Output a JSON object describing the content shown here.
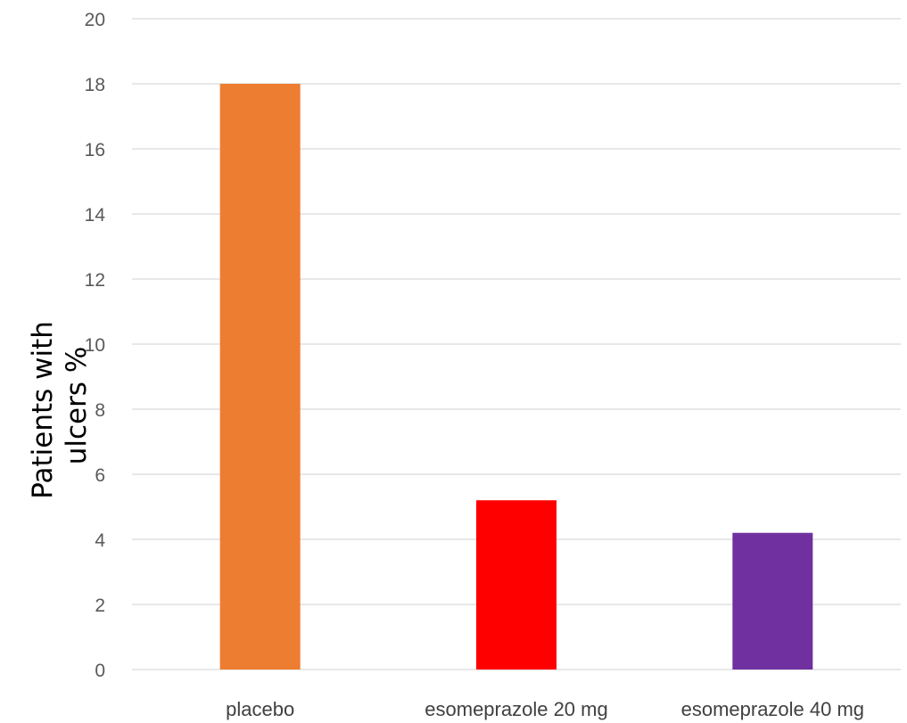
{
  "chart_data": {
    "type": "bar",
    "categories": [
      "placebo",
      "esomeprazole 20 mg",
      "esomeprazole 40 mg"
    ],
    "values": [
      18,
      5.2,
      4.2
    ],
    "colors": [
      "#ed7d31",
      "#ff0000",
      "#7030a0"
    ],
    "title": "",
    "xlabel": "",
    "ylabel_lines": [
      "Patients with",
      "ulcers %"
    ],
    "ylim": [
      0,
      20
    ],
    "yticks": [
      "0",
      "2",
      "4",
      "6",
      "8",
      "10",
      "12",
      "14",
      "16",
      "18",
      "20"
    ],
    "grid": true,
    "legend": "none"
  }
}
